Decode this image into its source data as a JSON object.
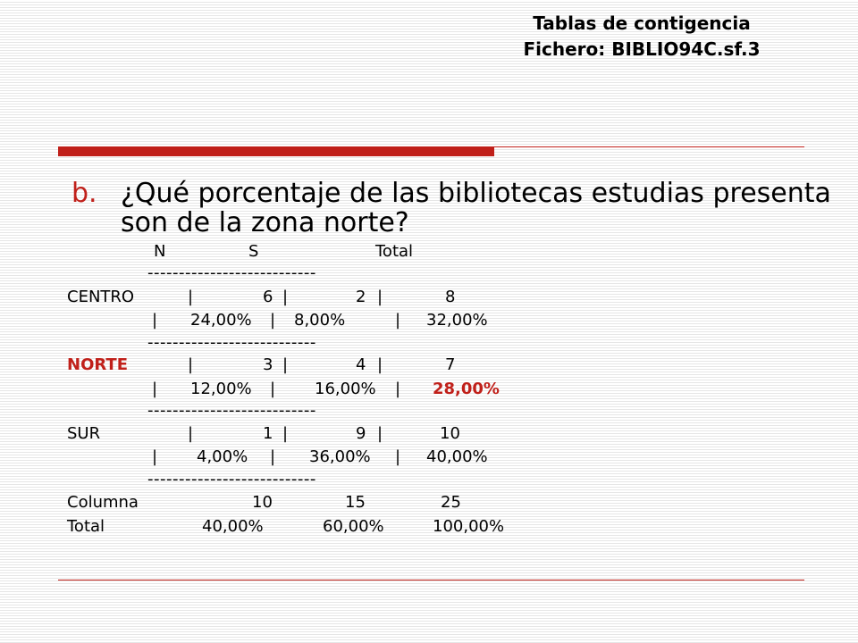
{
  "header": {
    "title": "Tablas de contigencia",
    "file": "Fichero: BIBLIO94C.sf.3"
  },
  "question": {
    "letter": "b.",
    "text": "¿Qué porcentaje de las bibliotecas estudias presenta son de la zona norte?"
  },
  "colors": {
    "accent": "#c0201a"
  },
  "table": {
    "headers": {
      "n": "N",
      "s": "S",
      "total": "Total"
    },
    "separator": "---------------------------",
    "rows": [
      {
        "label": "CENTRO",
        "counts": [
          "6",
          "2",
          "8"
        ],
        "percents": [
          "24,00%",
          "8,00%",
          "32,00%"
        ]
      },
      {
        "label": "NORTE",
        "counts": [
          "3",
          "4",
          "7"
        ],
        "percents": [
          "12,00%",
          "16,00%",
          "28,00%"
        ]
      },
      {
        "label": "SUR",
        "counts": [
          "1",
          "9",
          "10"
        ],
        "percents": [
          "4,00%",
          "36,00%",
          "40,00%"
        ]
      }
    ],
    "column_total": {
      "label1": "Columna",
      "label2": "Total",
      "counts": [
        "10",
        "15",
        "25"
      ],
      "percents": [
        "40,00%",
        "60,00%",
        "100,00%"
      ]
    },
    "pipe": "|"
  }
}
